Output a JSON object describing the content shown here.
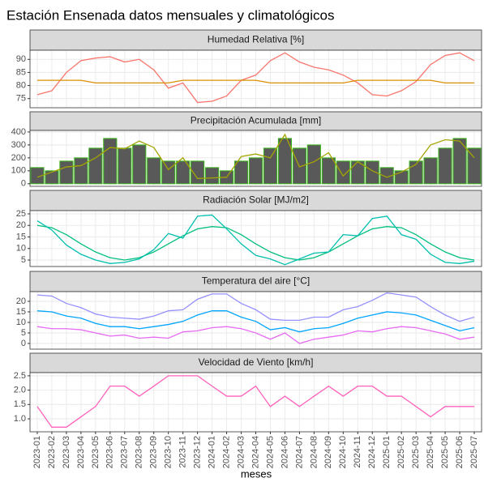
{
  "title": "Estación Ensenada datos mensuales y climatológicos",
  "xlabel": "meses",
  "categories": [
    "2023-01",
    "2023-02",
    "2023-03",
    "2023-04",
    "2023-05",
    "2023-06",
    "2023-07",
    "2023-08",
    "2023-09",
    "2023-10",
    "2023-11",
    "2023-12",
    "2024-01",
    "2024-02",
    "2024-03",
    "2024-04",
    "2024-05",
    "2024-06",
    "2024-07",
    "2024-08",
    "2024-09",
    "2024-10",
    "2024-11",
    "2024-12",
    "2025-01",
    "2025-02",
    "2025-03",
    "2025-04",
    "2025-05",
    "2025-06",
    "2025-07"
  ],
  "chart_data": [
    {
      "type": "line",
      "title": "Humedad Relativa [%]",
      "ylim": [
        71.5,
        93.5
      ],
      "yticks": [
        75,
        80,
        85,
        90
      ],
      "grid": true,
      "series": [
        {
          "color": "#F8766D",
          "values": [
            76.5,
            78,
            85,
            89.5,
            90.5,
            91,
            89,
            90,
            86,
            79,
            81,
            73.5,
            74,
            76,
            82,
            84,
            89.5,
            92.5,
            89,
            87,
            86,
            84,
            81,
            76.5,
            76,
            78,
            81.5,
            88,
            91.5,
            92.5,
            89.5
          ]
        },
        {
          "color": "#D89000",
          "values": [
            82,
            82,
            82,
            82,
            81,
            81,
            81,
            81,
            81,
            81,
            82,
            82,
            82,
            82,
            82,
            82,
            81,
            81,
            81,
            81,
            81,
            81,
            82,
            82,
            82,
            82,
            82,
            82,
            81,
            81,
            81
          ]
        }
      ]
    },
    {
      "type": "combo",
      "title": "Precipitación Acumulada [mm]",
      "ylim": [
        -20,
        412
      ],
      "yticks": [
        0,
        100,
        200,
        300,
        400
      ],
      "grid": true,
      "series": [
        {
          "type": "bar",
          "color": "#595959",
          "edgecolor": "#3DB81E",
          "values": [
            125,
            100,
            175,
            200,
            275,
            350,
            275,
            300,
            200,
            175,
            175,
            175,
            125,
            100,
            175,
            200,
            275,
            350,
            275,
            300,
            200,
            175,
            175,
            175,
            125,
            100,
            175,
            200,
            275,
            350,
            275
          ]
        },
        {
          "type": "line",
          "color": "#A3A500",
          "values": [
            50,
            90,
            130,
            140,
            200,
            280,
            270,
            330,
            280,
            110,
            200,
            40,
            45,
            50,
            210,
            230,
            200,
            380,
            130,
            170,
            240,
            60,
            170,
            100,
            50,
            90,
            150,
            300,
            340,
            330,
            200
          ]
        }
      ]
    },
    {
      "type": "line",
      "title": "Radiación Solar [MJ/m2]",
      "ylim": [
        2.2,
        26.4
      ],
      "yticks": [
        5,
        10,
        15,
        20,
        25
      ],
      "grid": true,
      "series": [
        {
          "color": "#00BF7D",
          "values": [
            20,
            19,
            16,
            12,
            8.5,
            6,
            5,
            6,
            8.5,
            12,
            15.5,
            18.5,
            19.5,
            19,
            16,
            12,
            8.5,
            6,
            5,
            6,
            8.5,
            12,
            15.5,
            18.5,
            19.5,
            19,
            16,
            12,
            8.5,
            6,
            5
          ]
        },
        {
          "color": "#00BFAE",
          "values": [
            22,
            18,
            11.5,
            7.5,
            5,
            3.5,
            4,
            5.5,
            9.5,
            16.5,
            14.5,
            24,
            24.5,
            18.5,
            12,
            7,
            5.5,
            3,
            5.5,
            8,
            8.5,
            16,
            15.5,
            23,
            24,
            16,
            14,
            7.5,
            4,
            3.5,
            4.5
          ]
        }
      ]
    },
    {
      "type": "line",
      "title": "Temperatura del aire [°C]",
      "ylim": [
        -2.7,
        24.6
      ],
      "yticks": [
        0,
        5,
        10,
        15,
        20
      ],
      "grid": true,
      "series": [
        {
          "color": "#9590FF",
          "values": [
            23,
            22.5,
            19,
            17,
            14,
            12.5,
            12,
            11.5,
            13,
            15.5,
            16,
            21,
            23.5,
            23.5,
            19,
            16,
            11.5,
            11,
            11,
            12.5,
            12.5,
            16,
            17.5,
            20.5,
            24,
            23,
            22,
            17.5,
            13.5,
            10.5,
            12.5
          ]
        },
        {
          "color": "#00A5FF",
          "values": [
            15.5,
            15,
            13,
            12,
            9.5,
            8,
            8,
            7,
            8,
            9,
            10.5,
            13.5,
            15.5,
            15.5,
            12.5,
            10.5,
            6.5,
            7.5,
            5.5,
            7,
            7.5,
            9.5,
            12,
            13.5,
            15,
            14.5,
            13.5,
            11,
            8.5,
            6,
            7.5
          ]
        },
        {
          "color": "#E76BF3",
          "values": [
            8,
            7,
            7,
            6.5,
            5,
            3.5,
            4,
            2.5,
            3,
            2.5,
            5.5,
            6,
            7.5,
            8,
            7,
            5,
            2,
            5,
            0,
            2,
            3,
            4,
            6,
            5.5,
            7,
            8,
            7.5,
            6,
            4.5,
            2,
            3
          ]
        }
      ]
    },
    {
      "type": "line",
      "title": "Velocidad de Viento [km/h]",
      "ylim": [
        0.55,
        2.61
      ],
      "yticks": [
        {
          "value": 1,
          "label": "1.0"
        },
        1.5,
        {
          "value": 2,
          "label": "2.0"
        },
        2.5
      ],
      "grid": true,
      "series": [
        {
          "color": "#FF62BC",
          "values": [
            1.43,
            0.71,
            0.71,
            1.07,
            1.43,
            2.14,
            2.14,
            1.79,
            2.14,
            2.5,
            2.5,
            2.5,
            2.14,
            1.79,
            1.79,
            2.14,
            1.43,
            1.79,
            1.43,
            1.79,
            2.14,
            1.79,
            2.14,
            2.14,
            1.79,
            1.79,
            1.43,
            1.07,
            1.43,
            1.43,
            1.43
          ]
        }
      ]
    }
  ]
}
